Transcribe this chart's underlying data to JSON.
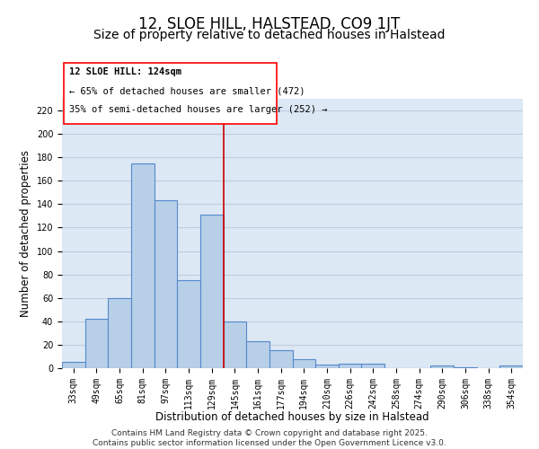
{
  "title": "12, SLOE HILL, HALSTEAD, CO9 1JT",
  "subtitle": "Size of property relative to detached houses in Halstead",
  "xlabel": "Distribution of detached houses by size in Halstead",
  "ylabel": "Number of detached properties",
  "categories": [
    "33sqm",
    "49sqm",
    "65sqm",
    "81sqm",
    "97sqm",
    "113sqm",
    "129sqm",
    "145sqm",
    "161sqm",
    "177sqm",
    "194sqm",
    "210sqm",
    "226sqm",
    "242sqm",
    "258sqm",
    "274sqm",
    "290sqm",
    "306sqm",
    "338sqm",
    "354sqm"
  ],
  "values": [
    5,
    42,
    60,
    175,
    143,
    75,
    131,
    40,
    23,
    15,
    8,
    3,
    4,
    4,
    0,
    0,
    2,
    1,
    0,
    2
  ],
  "bar_color": "#b8cfe8",
  "bar_edge_color": "#5588cc",
  "bar_linewidth": 0.8,
  "grid_color": "#c0cce0",
  "background_color": "#dce8f4",
  "red_line_x": 6.5,
  "red_line_color": "#cc0000",
  "ylim": [
    0,
    230
  ],
  "yticks": [
    0,
    20,
    40,
    60,
    80,
    100,
    120,
    140,
    160,
    180,
    200,
    220
  ],
  "footer_text": "Contains HM Land Registry data © Crown copyright and database right 2025.\nContains public sector information licensed under the Open Government Licence v3.0.",
  "title_fontsize": 12,
  "subtitle_fontsize": 10,
  "axis_label_fontsize": 8.5,
  "tick_fontsize": 7,
  "annotation_fontsize": 7.5,
  "footer_fontsize": 6.5,
  "ann_text_line1": "12 SLOE HILL: 124sqm",
  "ann_text_line2": "← 65% of detached houses are smaller (472)",
  "ann_text_line3": "35% of semi-detached houses are larger (252) →"
}
